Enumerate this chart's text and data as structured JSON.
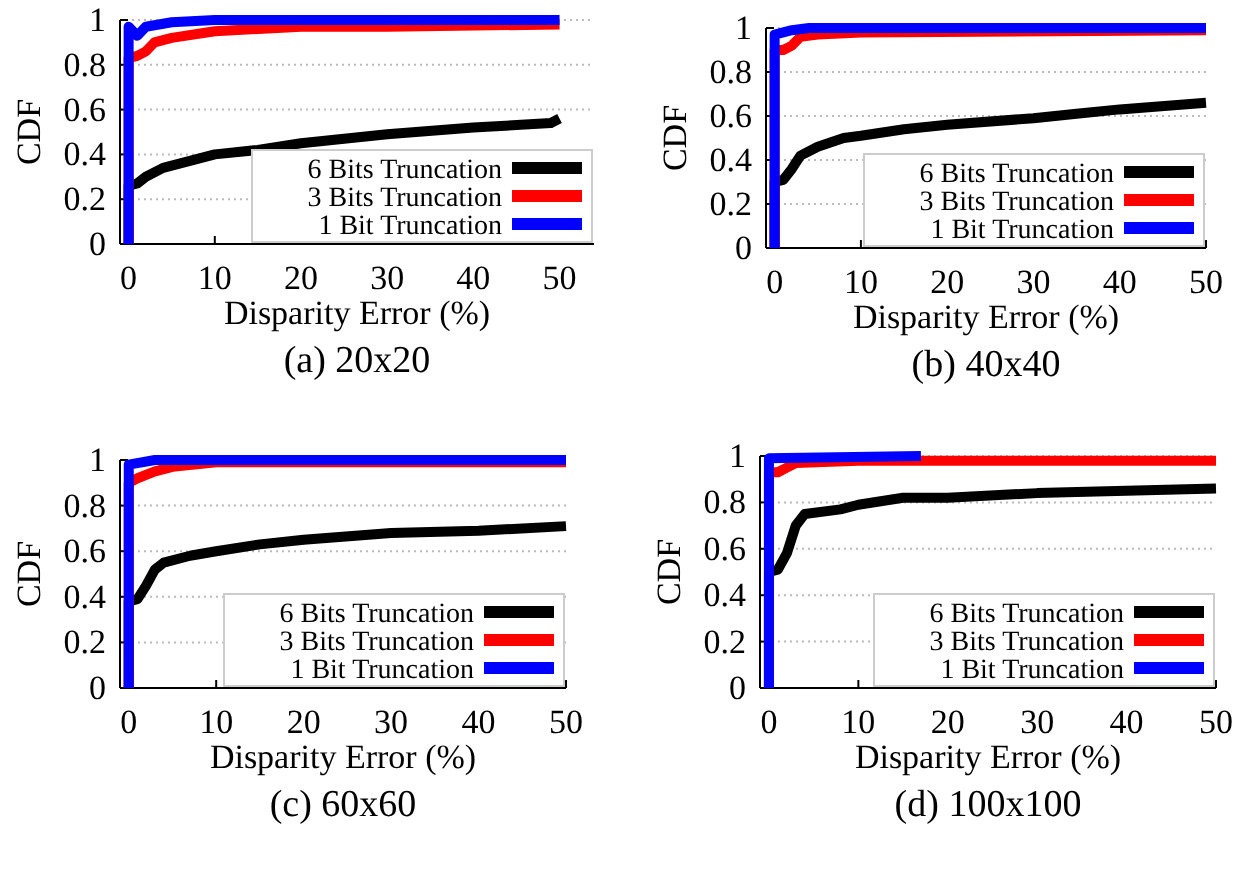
{
  "chart_data": [
    {
      "type": "line",
      "title": "(a) 20x20",
      "xlabel": "Disparity Error (%)",
      "ylabel": "CDF",
      "xlim": [
        -1,
        54
      ],
      "xticks": [
        0,
        10,
        20,
        30,
        40,
        50
      ],
      "ylim": [
        0,
        1
      ],
      "yticks": [
        0,
        0.2,
        0.4,
        0.6,
        0.8,
        1
      ],
      "grid": "y",
      "legend": "bottom right",
      "line_style": "solid",
      "marker": "none",
      "series": [
        {
          "name": "6 Bits Truncation",
          "color": "#000000",
          "x": [
            0,
            0,
            1,
            2,
            4,
            7,
            10,
            15,
            20,
            30,
            40,
            49,
            50
          ],
          "values": [
            0,
            0.26,
            0.27,
            0.3,
            0.34,
            0.37,
            0.4,
            0.42,
            0.45,
            0.49,
            0.52,
            0.54,
            0.56
          ]
        },
        {
          "name": "3 Bits Truncation",
          "color": "#ff0000",
          "x": [
            0,
            0,
            1,
            2,
            3,
            5,
            10,
            20,
            30,
            50
          ],
          "values": [
            0,
            0.83,
            0.84,
            0.86,
            0.9,
            0.92,
            0.95,
            0.97,
            0.97,
            0.98
          ]
        },
        {
          "name": "1 Bit Truncation",
          "color": "#0000ff",
          "x": [
            0,
            0,
            1,
            2,
            5,
            10,
            50
          ],
          "values": [
            0,
            0.97,
            0.93,
            0.97,
            0.99,
            1,
            1
          ]
        }
      ]
    },
    {
      "type": "line",
      "title": "(b) 40x40",
      "xlabel": "Disparity Error (%)",
      "ylabel": "CDF",
      "xlim": [
        -1,
        50
      ],
      "xticks": [
        0,
        10,
        20,
        30,
        40,
        50
      ],
      "ylim": [
        0,
        1
      ],
      "yticks": [
        0,
        0.2,
        0.4,
        0.6,
        0.8,
        1
      ],
      "grid": "y",
      "legend": "bottom right",
      "line_style": "solid",
      "marker": "none",
      "series": [
        {
          "name": "6 Bits Truncation",
          "color": "#000000",
          "x": [
            0,
            0,
            1,
            2,
            3,
            5,
            8,
            10,
            15,
            20,
            30,
            35,
            40,
            50
          ],
          "values": [
            0,
            0.3,
            0.31,
            0.36,
            0.42,
            0.46,
            0.5,
            0.51,
            0.54,
            0.56,
            0.59,
            0.61,
            0.63,
            0.66
          ]
        },
        {
          "name": "3 Bits Truncation",
          "color": "#ff0000",
          "x": [
            0,
            0,
            1,
            2,
            3,
            5,
            10,
            50
          ],
          "values": [
            0,
            0.9,
            0.9,
            0.92,
            0.96,
            0.97,
            0.98,
            0.99
          ]
        },
        {
          "name": "1 Bit Truncation",
          "color": "#0000ff",
          "x": [
            0,
            0,
            2,
            4,
            50
          ],
          "values": [
            0,
            0.97,
            0.99,
            1,
            1
          ]
        }
      ]
    },
    {
      "type": "line",
      "title": "(c) 60x60",
      "xlabel": "Disparity Error (%)",
      "ylabel": "CDF",
      "xlim": [
        -1,
        50
      ],
      "xticks": [
        0,
        10,
        20,
        30,
        40,
        50
      ],
      "ylim": [
        0,
        1
      ],
      "yticks": [
        0,
        0.2,
        0.4,
        0.6,
        0.8,
        1
      ],
      "grid": "y",
      "legend": "bottom right",
      "line_style": "solid",
      "marker": "none",
      "series": [
        {
          "name": "6 Bits Truncation",
          "color": "#000000",
          "x": [
            0,
            0,
            1,
            2,
            3,
            4,
            7,
            10,
            15,
            20,
            30,
            40,
            50
          ],
          "values": [
            0,
            0.38,
            0.39,
            0.45,
            0.52,
            0.55,
            0.58,
            0.6,
            0.63,
            0.65,
            0.68,
            0.69,
            0.71
          ]
        },
        {
          "name": "3 Bits Truncation",
          "color": "#ff0000",
          "x": [
            0,
            0,
            1,
            3,
            5,
            10,
            50
          ],
          "values": [
            0,
            0.9,
            0.92,
            0.95,
            0.97,
            0.99,
            0.99
          ]
        },
        {
          "name": "1 Bit Truncation",
          "color": "#0000ff",
          "x": [
            0,
            0,
            3,
            50
          ],
          "values": [
            0,
            0.98,
            1,
            1
          ]
        }
      ]
    },
    {
      "type": "line",
      "title": "(d) 100x100",
      "xlabel": "Disparity Error (%)",
      "ylabel": "CDF",
      "xlim": [
        -1,
        50
      ],
      "xticks": [
        0,
        10,
        20,
        30,
        40,
        50
      ],
      "ylim": [
        0,
        1
      ],
      "yticks": [
        0,
        0.2,
        0.4,
        0.6,
        0.8,
        1
      ],
      "grid": "y",
      "legend": "bottom right",
      "line_style": "solid",
      "marker": "none",
      "series": [
        {
          "name": "6 Bits Truncation",
          "color": "#000000",
          "x": [
            0,
            0,
            1,
            2,
            3,
            4,
            8,
            10,
            15,
            20,
            30,
            40,
            50
          ],
          "values": [
            0,
            0.5,
            0.51,
            0.58,
            0.7,
            0.75,
            0.77,
            0.79,
            0.82,
            0.82,
            0.84,
            0.85,
            0.86
          ]
        },
        {
          "name": "3 Bits Truncation",
          "color": "#ff0000",
          "x": [
            0,
            0,
            1,
            2,
            3,
            10,
            50
          ],
          "values": [
            0,
            0.93,
            0.93,
            0.95,
            0.97,
            0.98,
            0.98
          ]
        },
        {
          "name": "1 Bit Truncation",
          "color": "#0000ff",
          "x": [
            0,
            0,
            17
          ],
          "values": [
            0,
            0.99,
            1
          ]
        }
      ]
    }
  ]
}
